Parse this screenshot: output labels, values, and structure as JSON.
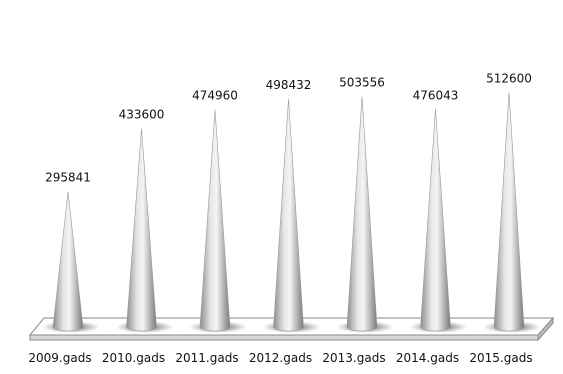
{
  "chart_data": {
    "type": "bar",
    "title": "",
    "xlabel": "",
    "ylabel": "",
    "categories": [
      "2009.gads",
      "2010.gads",
      "2011.gads",
      "2012.gads",
      "2013.gads",
      "2014.gads",
      "2015.gads"
    ],
    "values": [
      295841,
      433600,
      474960,
      498432,
      503556,
      476043,
      512600
    ],
    "value_labels": [
      "295841",
      "433600",
      "474960",
      "498432",
      "503556",
      "476043",
      "512600"
    ],
    "ylim": [
      0,
      540000
    ],
    "grid": false,
    "legend": "none",
    "mark_shape": "cone",
    "colors": {
      "cone_light": "#f2f2f2",
      "cone_mid": "#b5b5b5",
      "cone_dark": "#7a7a7a",
      "floor": "#ffffff",
      "floor_edge": "#8a8a8a",
      "text": "#111111"
    }
  }
}
